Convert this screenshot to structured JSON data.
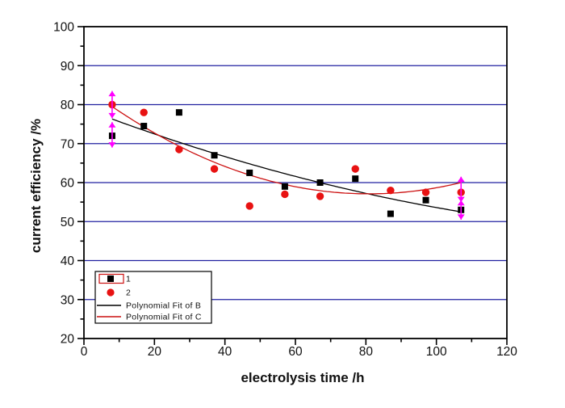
{
  "colors": {
    "series1": "#000000",
    "series2": "#e81212",
    "fit_b": "#000000",
    "fit_c": "#cc1111",
    "grid": "#2020a0",
    "error_bars": "#ff00ff",
    "axis": "#000000",
    "background": "#ffffff"
  },
  "axes": {
    "xlabel": "electrolysis time /h",
    "ylabel": "current efficiency /%",
    "xlim": [
      0,
      120
    ],
    "ylim": [
      20,
      100
    ],
    "xticks": [
      0,
      20,
      40,
      60,
      80,
      100,
      120
    ],
    "yticks": [
      20,
      30,
      40,
      50,
      60,
      70,
      80,
      90,
      100
    ],
    "x_minor_step": 10,
    "y_minor_step": 5,
    "grid": "horizontal-major"
  },
  "legend": {
    "position": "bottom-left",
    "entries": [
      {
        "label": "1",
        "marker": "square",
        "color": "#000000",
        "selected": true
      },
      {
        "label": "2",
        "marker": "circle",
        "color": "#e81212",
        "selected": false
      },
      {
        "label": "Polynomial Fit of B",
        "marker": "line",
        "color": "#000000",
        "selected": false
      },
      {
        "label": "Polynomial Fit of C",
        "marker": "line",
        "color": "#cc1111",
        "selected": false
      }
    ]
  },
  "chart_data": {
    "type": "scatter",
    "title": "",
    "xlabel": "electrolysis time /h",
    "ylabel": "current efficiency /%",
    "xlim": [
      0,
      120
    ],
    "ylim": [
      20,
      100
    ],
    "series": [
      {
        "name": "1",
        "marker": "square",
        "color": "#000000",
        "points": [
          [
            8,
            72
          ],
          [
            17,
            74.5
          ],
          [
            27,
            78
          ],
          [
            37,
            67
          ],
          [
            47,
            62.5
          ],
          [
            57,
            59
          ],
          [
            67,
            60
          ],
          [
            77,
            61
          ],
          [
            87,
            52
          ],
          [
            97,
            55.5
          ],
          [
            107,
            53
          ]
        ]
      },
      {
        "name": "2",
        "marker": "circle",
        "color": "#e81212",
        "points": [
          [
            8,
            80
          ],
          [
            17,
            78
          ],
          [
            27,
            68.5
          ],
          [
            37,
            63.5
          ],
          [
            47,
            54
          ],
          [
            57,
            57
          ],
          [
            67,
            56.5
          ],
          [
            77,
            63.5
          ],
          [
            87,
            58
          ],
          [
            97,
            57.5
          ],
          [
            107,
            57.5
          ]
        ]
      }
    ],
    "fits": [
      {
        "name": "Polynomial Fit of B",
        "color": "#000000",
        "type": "quadratic",
        "coeffs": [
          79.0,
          -0.3446,
          0.000906
        ],
        "x_range": [
          8,
          107
        ]
      },
      {
        "name": "Polynomial Fit of C",
        "color": "#cc1111",
        "type": "quadratic",
        "coeffs": [
          84.69,
          -0.6824,
          0.004222
        ],
        "x_range": [
          8,
          107
        ]
      }
    ],
    "error_bars": {
      "color": "#ff00ff",
      "cap_style": "arrow",
      "items": [
        {
          "x": 8,
          "low": 76.5,
          "high": 83.5
        },
        {
          "x": 8,
          "low": 69.0,
          "high": 75.5
        },
        {
          "x": 107,
          "low": 55.0,
          "high": 61.5
        },
        {
          "x": 107,
          "low": 50.5,
          "high": 55.5
        }
      ]
    }
  }
}
